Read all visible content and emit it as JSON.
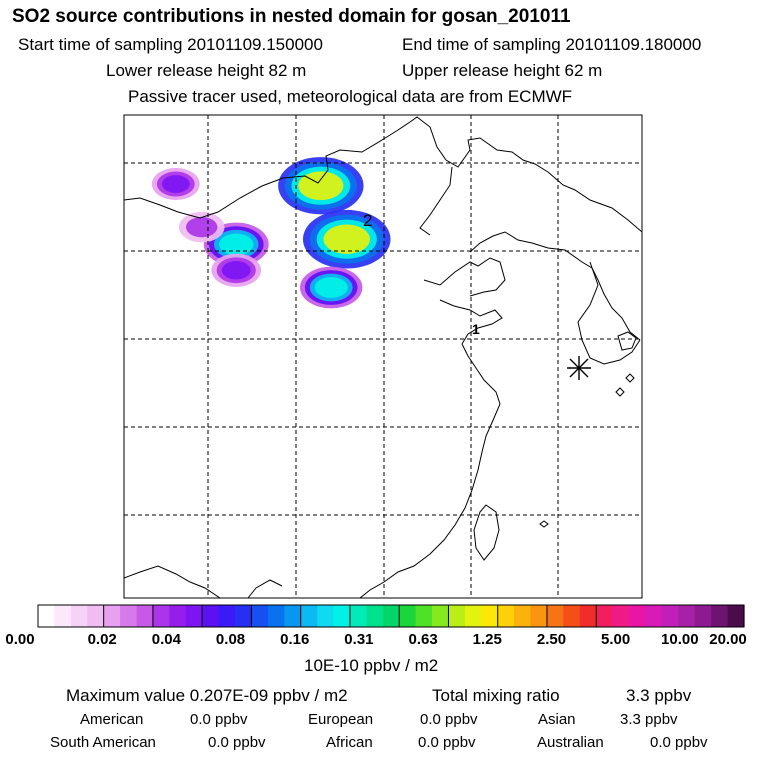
{
  "header": {
    "title": "SO2 source contributions in nested domain for gosan_201011",
    "start_time": "Start time of sampling 20101109.150000",
    "end_time": "End time of sampling 20101109.180000",
    "lower_height": "Lower release height   82 m",
    "upper_height": "Upper release height   62 m",
    "tracer_note": "Passive tracer used, meteorological data are from ECMWF"
  },
  "chart_data": {
    "type": "heatmap",
    "title": "SO2 source contributions in nested domain for gosan_201011",
    "map_labels": {
      "label_2": "2",
      "label_1": "1"
    },
    "colorbar": {
      "ticks": [
        "0.00",
        "0.02",
        "0.04",
        "0.08",
        "0.16",
        "0.31",
        "0.63",
        "1.25",
        "2.50",
        "5.00",
        "10.00",
        "20.00"
      ],
      "unit": "10E-10 ppbv / m2",
      "colors": [
        "#ffffff",
        "#fbe9fb",
        "#f6d3f6",
        "#f0bdf0",
        "#e8a1f0",
        "#d77ae9",
        "#c65ae6",
        "#ad35e9",
        "#951eed",
        "#7d14f2",
        "#5e10f4",
        "#3a1af5",
        "#2730f2",
        "#1650f0",
        "#0a72ee",
        "#0897f0",
        "#0bbaf0",
        "#0fdaf0",
        "#00f2e6",
        "#00ebb8",
        "#00e18e",
        "#00d66a",
        "#1ad63a",
        "#4fe028",
        "#86e81e",
        "#b9ee16",
        "#e4f20f",
        "#fbe708",
        "#fcd10a",
        "#fbb20c",
        "#fa950f",
        "#f77414",
        "#f44f19",
        "#f22b2b",
        "#f21e5e",
        "#ef1a86",
        "#e815a6",
        "#d81ab8",
        "#c21fb9",
        "#a81fa8",
        "#8e1a92",
        "#6e1470",
        "#4a0c4a"
      ],
      "boundaries": [
        0,
        4,
        7,
        10,
        13,
        16,
        19,
        22,
        25,
        28,
        31,
        34,
        37
      ],
      "total_cells": 43
    },
    "sources": [
      {
        "lon": 116.4,
        "lat": 39.9,
        "peak": 1.5
      },
      {
        "lon": 117.9,
        "lat": 36.8,
        "peak": 1.8
      },
      {
        "lon": 111.5,
        "lat": 36.5,
        "peak": 0.25
      },
      {
        "lon": 117.0,
        "lat": 34.0,
        "peak": 0.2
      },
      {
        "lon": 111.5,
        "lat": 35.0,
        "peak": 0.06
      },
      {
        "lon": 108.0,
        "lat": 40.0,
        "peak": 0.05
      },
      {
        "lon": 109.5,
        "lat": 37.5,
        "peak": 0.04
      }
    ]
  },
  "summary": {
    "max_value": "Maximum value  0.207E-09 ppbv / m2",
    "total_label": "Total mixing ratio",
    "total_value": "3.3 ppbv",
    "regions": [
      {
        "name": "American",
        "value": "0.0 ppbv"
      },
      {
        "name": "European",
        "value": "0.0 ppbv"
      },
      {
        "name": "Asian",
        "value": "3.3 ppbv"
      },
      {
        "name": "South American",
        "value": "0.0 ppbv"
      },
      {
        "name": "African",
        "value": "0.0 ppbv"
      },
      {
        "name": "Australian",
        "value": "0.0 ppbv"
      }
    ]
  }
}
